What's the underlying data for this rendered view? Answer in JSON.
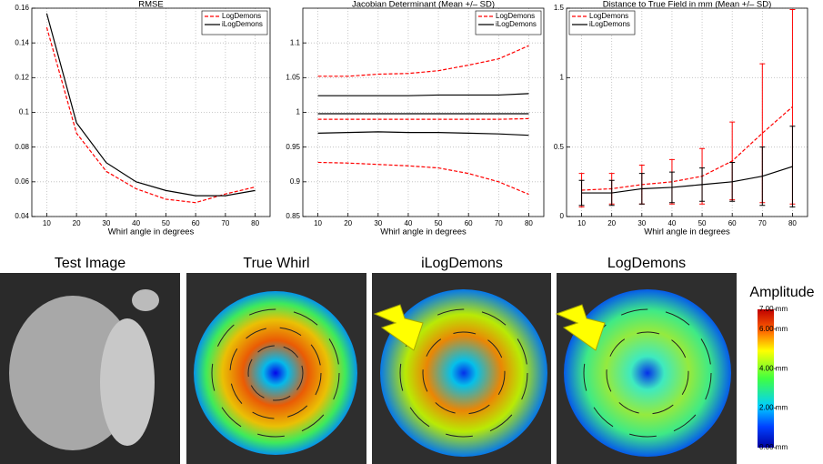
{
  "chart_data": [
    {
      "type": "line",
      "title": "RMSE",
      "xlabel": "Whirl angle in degrees",
      "x": [
        10,
        20,
        30,
        40,
        50,
        60,
        70,
        80
      ],
      "series": [
        {
          "name": "LogDemons",
          "color": "#ff0000",
          "linestyle": "dashed",
          "values": [
            0.149,
            0.088,
            0.066,
            0.056,
            0.05,
            0.048,
            0.053,
            0.057
          ]
        },
        {
          "name": "iLogDemons",
          "color": "#000000",
          "linestyle": "solid",
          "values": [
            0.157,
            0.094,
            0.071,
            0.06,
            0.055,
            0.052,
            0.052,
            0.055
          ]
        }
      ],
      "xlim": [
        5,
        85
      ],
      "ylim": [
        0.04,
        0.16
      ],
      "xticks": [
        10,
        20,
        30,
        40,
        50,
        60,
        70,
        80
      ],
      "yticks": [
        0.04,
        0.06,
        0.08,
        0.1,
        0.12,
        0.14,
        0.16
      ],
      "grid": true,
      "legend": "upper right"
    },
    {
      "type": "band",
      "title": "Jacobian Determinant (Mean +/– SD)",
      "xlabel": "Whirl angle in degrees",
      "x": [
        10,
        20,
        30,
        40,
        50,
        60,
        70,
        80
      ],
      "series": [
        {
          "name": "LogDemons",
          "color": "#ff0000",
          "linestyle": "dashed",
          "values": [
            0.99,
            0.99,
            0.99,
            0.99,
            0.99,
            0.99,
            0.99,
            0.991
          ],
          "upper": [
            1.052,
            1.052,
            1.055,
            1.056,
            1.06,
            1.068,
            1.077,
            1.096
          ],
          "lower": [
            0.928,
            0.927,
            0.925,
            0.923,
            0.92,
            0.912,
            0.9,
            0.882
          ]
        },
        {
          "name": "iLogDemons",
          "color": "#000000",
          "linestyle": "solid",
          "values": [
            0.998,
            0.998,
            0.998,
            0.998,
            0.998,
            0.998,
            0.998,
            0.998
          ],
          "upper": [
            1.024,
            1.024,
            1.024,
            1.024,
            1.025,
            1.025,
            1.025,
            1.027
          ],
          "lower": [
            0.97,
            0.971,
            0.972,
            0.971,
            0.971,
            0.97,
            0.969,
            0.967
          ]
        }
      ],
      "xlim": [
        5,
        85
      ],
      "ylim": [
        0.85,
        1.15
      ],
      "xticks": [
        10,
        20,
        30,
        40,
        50,
        60,
        70,
        80
      ],
      "yticks": [
        0.85,
        0.9,
        0.95,
        1,
        1.05,
        1.1
      ],
      "grid": true,
      "legend": "upper right"
    },
    {
      "type": "errorbar",
      "title": "Distance to True Field in mm (Mean +/– SD)",
      "xlabel": "Whirl angle in degrees",
      "x": [
        10,
        20,
        30,
        40,
        50,
        60,
        70,
        80
      ],
      "series": [
        {
          "name": "LogDemons",
          "color": "#ff0000",
          "linestyle": "dashed",
          "values": [
            0.19,
            0.2,
            0.23,
            0.25,
            0.29,
            0.4,
            0.6,
            0.79
          ],
          "errors": [
            0.12,
            0.11,
            0.14,
            0.16,
            0.2,
            0.28,
            0.5,
            0.7
          ]
        },
        {
          "name": "iLogDemons",
          "color": "#000000",
          "linestyle": "solid",
          "values": [
            0.17,
            0.17,
            0.2,
            0.21,
            0.23,
            0.25,
            0.29,
            0.36
          ],
          "errors": [
            0.09,
            0.09,
            0.11,
            0.11,
            0.12,
            0.14,
            0.21,
            0.29
          ]
        }
      ],
      "xlim": [
        5,
        85
      ],
      "ylim": [
        0,
        1.5
      ],
      "xticks": [
        10,
        20,
        30,
        40,
        50,
        60,
        70,
        80
      ],
      "yticks": [
        0,
        0.5,
        1,
        1.5
      ],
      "grid": true,
      "legend": "upper left"
    }
  ],
  "panels": [
    "Test Image",
    "True Whirl",
    "iLogDemons",
    "LogDemons"
  ],
  "colorbar": {
    "title": "Amplitude",
    "lim": [
      0,
      7
    ],
    "ticks": [
      {
        "value": 7,
        "label": "7.00 mm"
      },
      {
        "value": 6,
        "label": "6.00 mm"
      },
      {
        "value": 4,
        "label": "4.00 mm"
      },
      {
        "value": 2,
        "label": "2.00 mm"
      },
      {
        "value": 0,
        "label": "0.00 mm"
      }
    ]
  }
}
